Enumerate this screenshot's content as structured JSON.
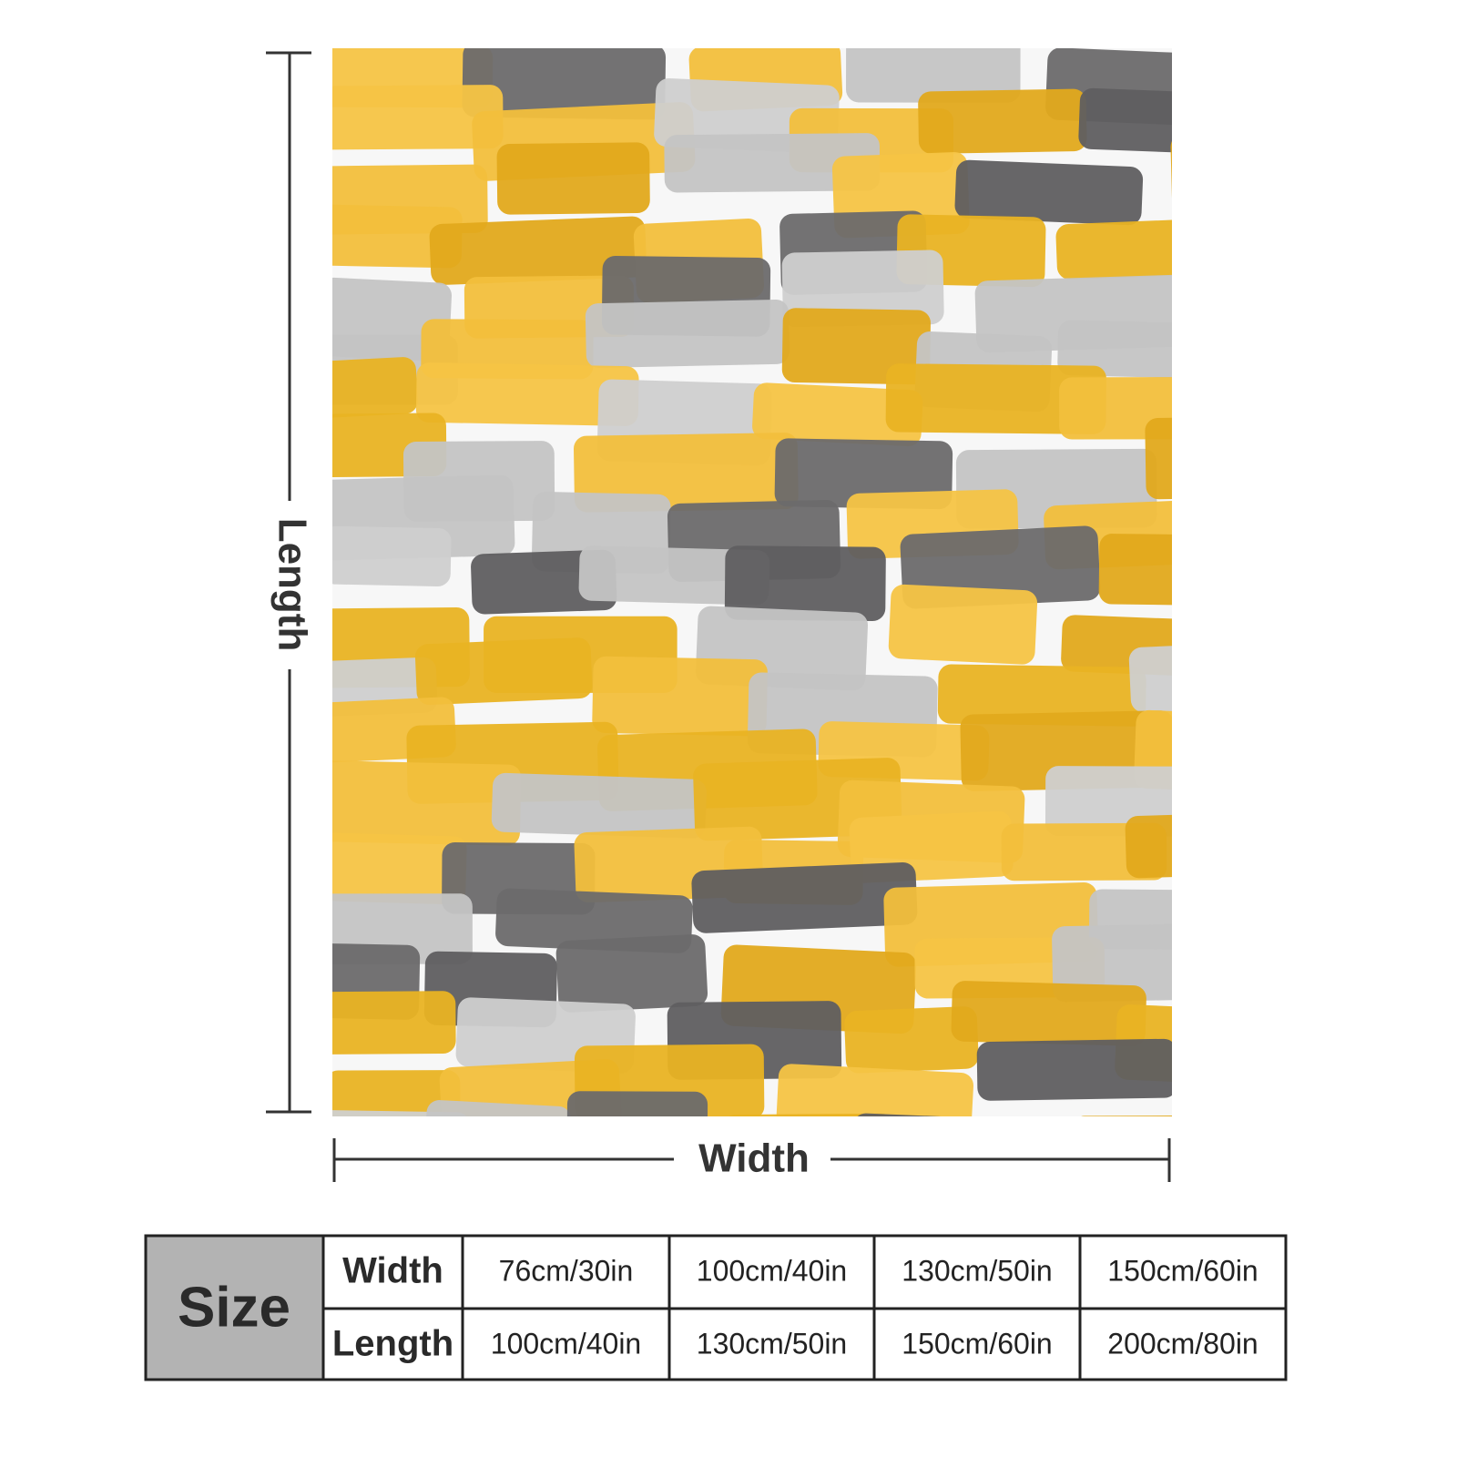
{
  "dimensions": {
    "length_label": "Length",
    "width_label": "Width"
  },
  "table": {
    "title": "Size",
    "rows": [
      [
        "Width",
        "76cm/30in",
        "100cm/40in",
        "130cm/50in",
        "150cm/60in"
      ],
      [
        "Length",
        "100cm/40in",
        "130cm/50in",
        "150cm/60in",
        "200cm/80in"
      ]
    ]
  }
}
